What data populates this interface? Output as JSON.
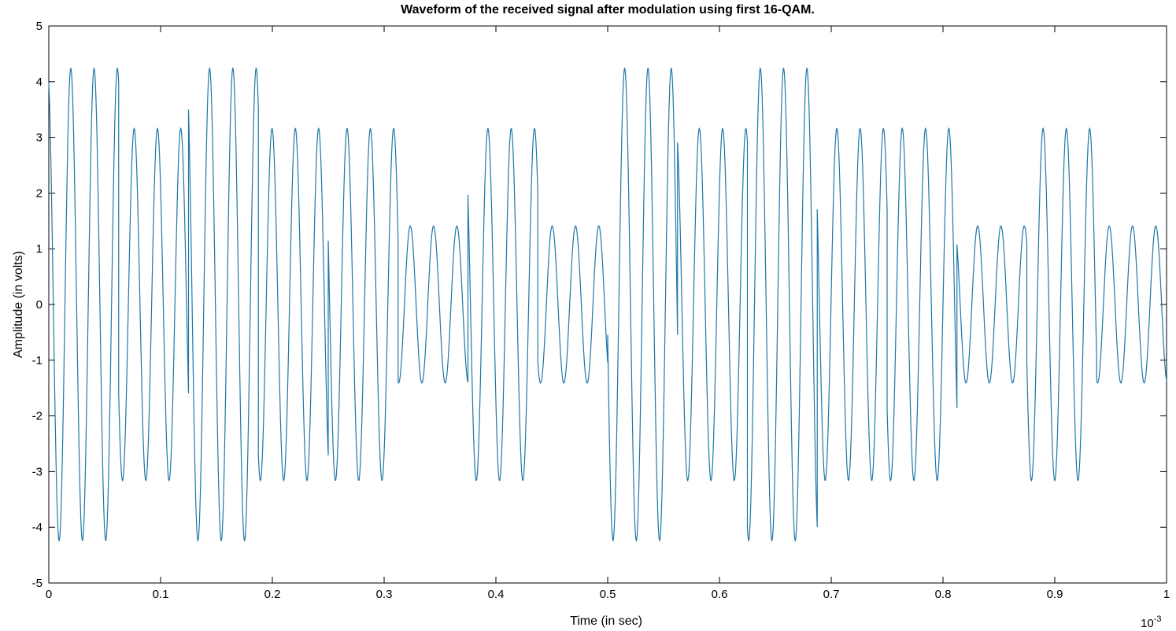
{
  "chart_data": {
    "type": "line",
    "title": "Waveform of the received signal after modulation using first 16-QAM.",
    "xlabel": "Time (in sec)",
    "ylabel": "Amplitude (in volts)",
    "x_exponent_label": "10",
    "x_exponent_power": "-3",
    "xlim": [
      0,
      1
    ],
    "ylim": [
      -5,
      5
    ],
    "x_ticks": [
      "0",
      "0.1",
      "0.2",
      "0.3",
      "0.4",
      "0.5",
      "0.6",
      "0.7",
      "0.8",
      "0.9",
      "1"
    ],
    "y_ticks": [
      "5",
      "4",
      "3",
      "2",
      "1",
      "0",
      "-1",
      "-2",
      "-3",
      "-4",
      "-5"
    ],
    "grid": false,
    "line_color": "#1f77a8",
    "carrier_cycles_per_symbol": 3,
    "symbols": [
      {
        "t_start": 0.0,
        "t_end": 0.0625,
        "amplitude": 4.24
      },
      {
        "t_start": 0.0625,
        "t_end": 0.125,
        "amplitude": 3.16
      },
      {
        "t_start": 0.125,
        "t_end": 0.1875,
        "amplitude": 4.24
      },
      {
        "t_start": 0.1875,
        "t_end": 0.25,
        "amplitude": 3.16
      },
      {
        "t_start": 0.25,
        "t_end": 0.3125,
        "amplitude": 3.16
      },
      {
        "t_start": 0.3125,
        "t_end": 0.375,
        "amplitude": 1.41
      },
      {
        "t_start": 0.375,
        "t_end": 0.4375,
        "amplitude": 3.16
      },
      {
        "t_start": 0.4375,
        "t_end": 0.5,
        "amplitude": 1.41
      },
      {
        "t_start": 0.5,
        "t_end": 0.5625,
        "amplitude": 4.24
      },
      {
        "t_start": 0.5625,
        "t_end": 0.625,
        "amplitude": 3.16
      },
      {
        "t_start": 0.625,
        "t_end": 0.6875,
        "amplitude": 4.24
      },
      {
        "t_start": 0.6875,
        "t_end": 0.75,
        "amplitude": 3.16
      },
      {
        "t_start": 0.75,
        "t_end": 0.8125,
        "amplitude": 3.16
      },
      {
        "t_start": 0.8125,
        "t_end": 0.875,
        "amplitude": 1.41
      },
      {
        "t_start": 0.875,
        "t_end": 0.9375,
        "amplitude": 3.16
      },
      {
        "t_start": 0.9375,
        "t_end": 1.0,
        "amplitude": 1.41
      }
    ]
  }
}
